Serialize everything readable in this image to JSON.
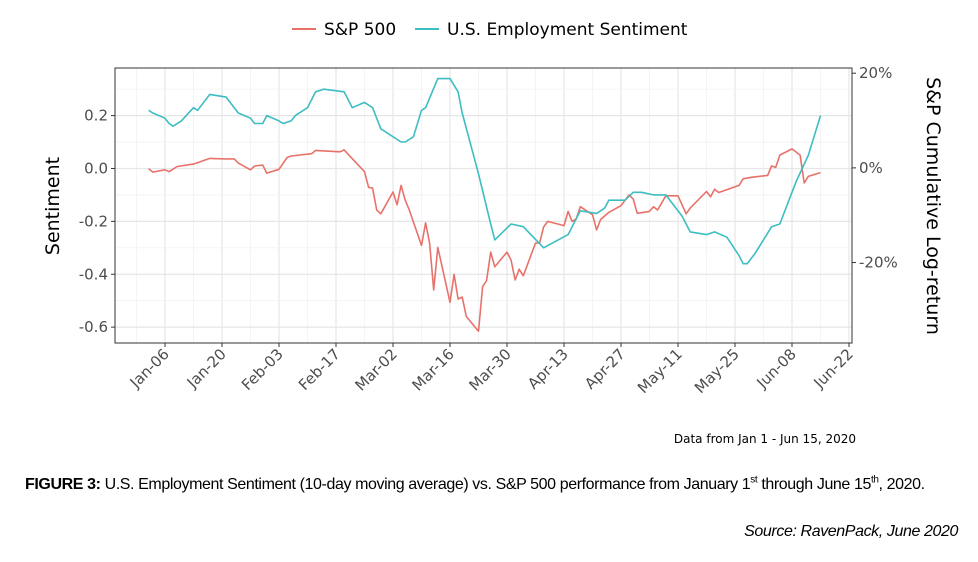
{
  "chart_data": {
    "type": "line",
    "legend": {
      "placement": "top",
      "entries": [
        "S&P 500",
        "U.S. Employment Sentiment"
      ]
    },
    "ylabel": "Sentiment",
    "ylabel_right": "S&P Cumulative Log-return",
    "note": "Data from Jan 1 - Jun 15, 2020",
    "grid": true,
    "x_ticks": [
      {
        "date": "2020-01-06",
        "label": "Jan-06"
      },
      {
        "date": "2020-01-20",
        "label": "Jan-20"
      },
      {
        "date": "2020-02-03",
        "label": "Feb-03"
      },
      {
        "date": "2020-02-17",
        "label": "Feb-17"
      },
      {
        "date": "2020-03-02",
        "label": "Mar-02"
      },
      {
        "date": "2020-03-16",
        "label": "Mar-16"
      },
      {
        "date": "2020-03-30",
        "label": "Mar-30"
      },
      {
        "date": "2020-04-13",
        "label": "Apr-13"
      },
      {
        "date": "2020-04-27",
        "label": "Apr-27"
      },
      {
        "date": "2020-05-11",
        "label": "May-11"
      },
      {
        "date": "2020-05-25",
        "label": "May-25"
      },
      {
        "date": "2020-06-08",
        "label": "Jun-08"
      },
      {
        "date": "2020-06-22",
        "label": "Jun-22"
      }
    ],
    "xlim": [
      "2019-12-28",
      "2020-06-22"
    ],
    "y_left": {
      "ylim": [
        -0.66,
        0.38
      ],
      "ticks": [
        {
          "v": 0.2,
          "label": "0.2"
        },
        {
          "v": 0.0,
          "label": "0.0"
        },
        {
          "v": -0.2,
          "label": "-0.2"
        },
        {
          "v": -0.4,
          "label": "-0.4"
        },
        {
          "v": -0.6,
          "label": "-0.6"
        }
      ]
    },
    "y_right": {
      "ylim": [
        -37.0,
        21.1
      ],
      "unit": "%",
      "ticks": [
        {
          "v": 20,
          "label": "20%"
        },
        {
          "v": 0,
          "label": "0%"
        },
        {
          "v": -20,
          "label": "-20%"
        }
      ]
    },
    "series": [
      {
        "name": "S&P 500",
        "axis": "right",
        "color": "#E8726A",
        "points": [
          [
            "2020-01-02",
            -0.2
          ],
          [
            "2020-01-03",
            -0.9
          ],
          [
            "2020-01-06",
            -0.4
          ],
          [
            "2020-01-07",
            -0.8
          ],
          [
            "2020-01-09",
            0.3
          ],
          [
            "2020-01-13",
            0.8
          ],
          [
            "2020-01-17",
            2.0
          ],
          [
            "2020-01-21",
            1.9
          ],
          [
            "2020-01-23",
            1.9
          ],
          [
            "2020-01-24",
            1.0
          ],
          [
            "2020-01-27",
            -0.4
          ],
          [
            "2020-01-28",
            0.4
          ],
          [
            "2020-01-30",
            0.6
          ],
          [
            "2020-01-31",
            -1.1
          ],
          [
            "2020-02-03",
            -0.3
          ],
          [
            "2020-02-05",
            2.2
          ],
          [
            "2020-02-06",
            2.5
          ],
          [
            "2020-02-11",
            3.0
          ],
          [
            "2020-02-12",
            3.7
          ],
          [
            "2020-02-18",
            3.4
          ],
          [
            "2020-02-19",
            3.8
          ],
          [
            "2020-02-24",
            -0.8
          ],
          [
            "2020-02-25",
            -4.1
          ],
          [
            "2020-02-26",
            -4.3
          ],
          [
            "2020-02-27",
            -8.9
          ],
          [
            "2020-02-28",
            -9.7
          ],
          [
            "2020-03-02",
            -5.1
          ],
          [
            "2020-03-03",
            -7.8
          ],
          [
            "2020-03-04",
            -3.7
          ],
          [
            "2020-03-05",
            -6.8
          ],
          [
            "2020-03-06",
            -8.9
          ],
          [
            "2020-03-09",
            -16.4
          ],
          [
            "2020-03-10",
            -11.6
          ],
          [
            "2020-03-11",
            -15.9
          ],
          [
            "2020-03-12",
            -25.8
          ],
          [
            "2020-03-13",
            -16.8
          ],
          [
            "2020-03-16",
            -28.4
          ],
          [
            "2020-03-17",
            -22.5
          ],
          [
            "2020-03-18",
            -27.7
          ],
          [
            "2020-03-19",
            -27.3
          ],
          [
            "2020-03-20",
            -31.4
          ],
          [
            "2020-03-23",
            -34.5
          ],
          [
            "2020-03-24",
            -25.1
          ],
          [
            "2020-03-25",
            -23.8
          ],
          [
            "2020-03-26",
            -17.8
          ],
          [
            "2020-03-27",
            -20.9
          ],
          [
            "2020-03-30",
            -17.8
          ],
          [
            "2020-03-31",
            -19.5
          ],
          [
            "2020-04-01",
            -23.7
          ],
          [
            "2020-04-02",
            -21.4
          ],
          [
            "2020-04-03",
            -22.8
          ],
          [
            "2020-04-06",
            -15.9
          ],
          [
            "2020-04-07",
            -15.9
          ],
          [
            "2020-04-08",
            -12.5
          ],
          [
            "2020-04-09",
            -11.3
          ],
          [
            "2020-04-13",
            -12.2
          ],
          [
            "2020-04-14",
            -9.2
          ],
          [
            "2020-04-15",
            -11.3
          ],
          [
            "2020-04-16",
            -10.8
          ],
          [
            "2020-04-17",
            -8.2
          ],
          [
            "2020-04-20",
            -9.9
          ],
          [
            "2020-04-21",
            -13.1
          ],
          [
            "2020-04-22",
            -10.9
          ],
          [
            "2020-04-24",
            -9.4
          ],
          [
            "2020-04-27",
            -8.0
          ],
          [
            "2020-04-29",
            -5.7
          ],
          [
            "2020-04-30",
            -6.6
          ],
          [
            "2020-05-01",
            -9.6
          ],
          [
            "2020-05-04",
            -9.2
          ],
          [
            "2020-05-05",
            -8.2
          ],
          [
            "2020-05-06",
            -8.9
          ],
          [
            "2020-05-08",
            -5.9
          ],
          [
            "2020-05-11",
            -5.9
          ],
          [
            "2020-05-13",
            -9.7
          ],
          [
            "2020-05-14",
            -8.5
          ],
          [
            "2020-05-18",
            -5.0
          ],
          [
            "2020-05-19",
            -6.1
          ],
          [
            "2020-05-20",
            -4.5
          ],
          [
            "2020-05-21",
            -5.2
          ],
          [
            "2020-05-26",
            -3.7
          ],
          [
            "2020-05-27",
            -2.3
          ],
          [
            "2020-05-29",
            -2.0
          ],
          [
            "2020-06-02",
            -1.6
          ],
          [
            "2020-06-03",
            0.4
          ],
          [
            "2020-06-04",
            0.1
          ],
          [
            "2020-06-05",
            2.7
          ],
          [
            "2020-06-08",
            4.0
          ],
          [
            "2020-06-10",
            2.7
          ],
          [
            "2020-06-11",
            -3.2
          ],
          [
            "2020-06-12",
            -1.8
          ],
          [
            "2020-06-15",
            -1.0
          ]
        ]
      },
      {
        "name": "U.S. Employment Sentiment",
        "axis": "left",
        "color": "#3DBDC2",
        "points": [
          [
            "2020-01-02",
            0.22
          ],
          [
            "2020-01-03",
            0.21
          ],
          [
            "2020-01-06",
            0.19
          ],
          [
            "2020-01-07",
            0.17
          ],
          [
            "2020-01-08",
            0.16
          ],
          [
            "2020-01-10",
            0.18
          ],
          [
            "2020-01-13",
            0.23
          ],
          [
            "2020-01-14",
            0.22
          ],
          [
            "2020-01-17",
            0.28
          ],
          [
            "2020-01-21",
            0.27
          ],
          [
            "2020-01-24",
            0.21
          ],
          [
            "2020-01-27",
            0.19
          ],
          [
            "2020-01-28",
            0.17
          ],
          [
            "2020-01-30",
            0.17
          ],
          [
            "2020-01-31",
            0.2
          ],
          [
            "2020-02-03",
            0.18
          ],
          [
            "2020-02-04",
            0.17
          ],
          [
            "2020-02-06",
            0.18
          ],
          [
            "2020-02-07",
            0.2
          ],
          [
            "2020-02-10",
            0.23
          ],
          [
            "2020-02-12",
            0.29
          ],
          [
            "2020-02-14",
            0.3
          ],
          [
            "2020-02-19",
            0.29
          ],
          [
            "2020-02-21",
            0.23
          ],
          [
            "2020-02-24",
            0.25
          ],
          [
            "2020-02-26",
            0.23
          ],
          [
            "2020-02-28",
            0.15
          ],
          [
            "2020-03-04",
            0.1
          ],
          [
            "2020-03-05",
            0.1
          ],
          [
            "2020-03-07",
            0.12
          ],
          [
            "2020-03-09",
            0.22
          ],
          [
            "2020-03-10",
            0.23
          ],
          [
            "2020-03-13",
            0.34
          ],
          [
            "2020-03-16",
            0.34
          ],
          [
            "2020-03-18",
            0.29
          ],
          [
            "2020-03-19",
            0.21
          ],
          [
            "2020-03-23",
            -0.02
          ],
          [
            "2020-03-26",
            -0.21
          ],
          [
            "2020-03-27",
            -0.27
          ],
          [
            "2020-03-31",
            -0.21
          ],
          [
            "2020-04-03",
            -0.22
          ],
          [
            "2020-04-08",
            -0.3
          ],
          [
            "2020-04-14",
            -0.25
          ],
          [
            "2020-04-17",
            -0.16
          ],
          [
            "2020-04-21",
            -0.17
          ],
          [
            "2020-04-23",
            -0.15
          ],
          [
            "2020-04-24",
            -0.12
          ],
          [
            "2020-04-28",
            -0.12
          ],
          [
            "2020-04-30",
            -0.09
          ],
          [
            "2020-05-02",
            -0.09
          ],
          [
            "2020-05-05",
            -0.1
          ],
          [
            "2020-05-08",
            -0.1
          ],
          [
            "2020-05-12",
            -0.18
          ],
          [
            "2020-05-14",
            -0.24
          ],
          [
            "2020-05-18",
            -0.25
          ],
          [
            "2020-05-20",
            -0.24
          ],
          [
            "2020-05-23",
            -0.26
          ],
          [
            "2020-05-26",
            -0.33
          ],
          [
            "2020-05-27",
            -0.36
          ],
          [
            "2020-05-28",
            -0.36
          ],
          [
            "2020-05-30",
            -0.32
          ],
          [
            "2020-06-03",
            -0.22
          ],
          [
            "2020-06-05",
            -0.21
          ],
          [
            "2020-06-09",
            -0.05
          ],
          [
            "2020-06-12",
            0.05
          ],
          [
            "2020-06-15",
            0.2
          ]
        ]
      }
    ]
  },
  "caption": {
    "label": "FIGURE 3:",
    "text_a": " U.S. Employment Sentiment (10-day moving average) vs. S&P 500 performance from January 1",
    "sup_a": "st",
    "text_b": " through June 15",
    "sup_b": "th",
    "text_c": ", 2020."
  },
  "source": "Source: RavenPack, June 2020"
}
